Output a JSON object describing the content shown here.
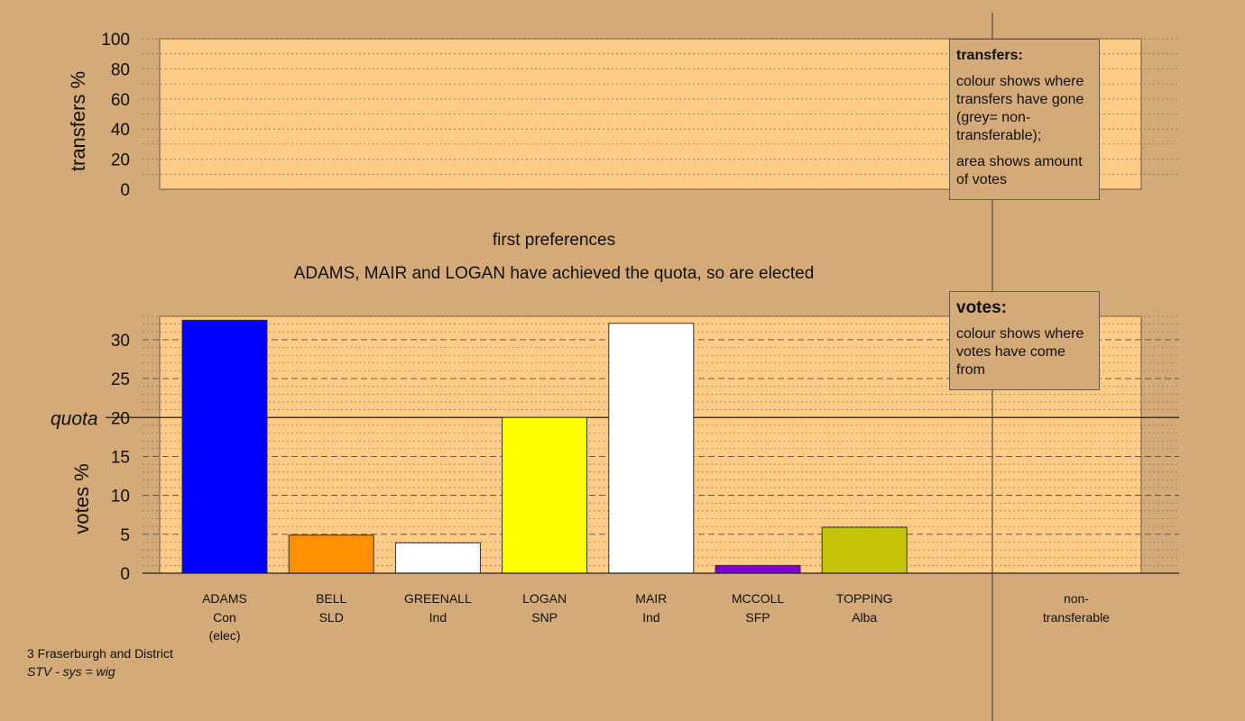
{
  "chart_data": [
    {
      "type": "bar",
      "ylabel": "transfers %",
      "ylim": [
        0,
        100
      ],
      "yticks": [
        0,
        20,
        40,
        60,
        80,
        100
      ],
      "grid": true,
      "series": []
    },
    {
      "type": "bar",
      "title": "first preferences",
      "subtitle": "ADAMS, MAIR and LOGAN have achieved the quota, so are elected",
      "ylabel": "votes %",
      "ylim": [
        0,
        33
      ],
      "yticks": [
        0,
        5,
        10,
        15,
        20,
        25,
        30
      ],
      "grid": true,
      "quota": {
        "label": "quota",
        "value": 20
      },
      "categories": [
        {
          "name": "ADAMS",
          "party": "Con",
          "note": "(elec)"
        },
        {
          "name": "BELL",
          "party": "SLD",
          "note": ""
        },
        {
          "name": "GREENALL",
          "party": "Ind",
          "note": ""
        },
        {
          "name": "LOGAN",
          "party": "SNP",
          "note": ""
        },
        {
          "name": "MAIR",
          "party": "Ind",
          "note": ""
        },
        {
          "name": "MCCOLL",
          "party": "SFP",
          "note": ""
        },
        {
          "name": "TOPPING",
          "party": "Alba",
          "note": ""
        }
      ],
      "values": [
        32.5,
        4.9,
        3.9,
        20.0,
        32.1,
        1.0,
        5.9
      ],
      "colors": [
        "#0000ff",
        "#ff9000",
        "#ffffff",
        "#ffff00",
        "#ffffff",
        "#8000d0",
        "#c4c40a"
      ],
      "extra_category": {
        "line1": "non-",
        "line2": "transferable"
      }
    }
  ],
  "legends": {
    "transfers": {
      "title": "transfers:",
      "text1": "colour shows where transfers have gone (grey= non-transferable);",
      "text2": "area shows amount of votes"
    },
    "votes": {
      "title": "votes:",
      "text1": "colour shows where votes have come from"
    }
  },
  "footer": {
    "title": "3 Fraserburgh and District",
    "system": "STV - sys = wig"
  },
  "colors": {
    "background": "#d4aa78",
    "plot_area": "#ffcc88"
  }
}
